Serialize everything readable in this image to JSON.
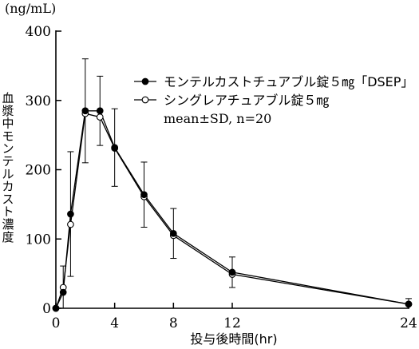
{
  "chart_data": {
    "type": "line",
    "y_unit": "(ng/mL)",
    "ylabel": "血漿中モンテルカスト濃度",
    "xlabel": "投与後時間(hr)",
    "xlim": [
      0,
      24
    ],
    "ylim": [
      0,
      400
    ],
    "x_ticks": [
      0,
      4,
      8,
      12,
      24
    ],
    "y_ticks": [
      0,
      100,
      200,
      300,
      400
    ],
    "legend_position": "top-right",
    "legend_note": "mean±SD, n=20",
    "series": [
      {
        "name": "モンテルカストチュアブル錠５㎎「DSEP」",
        "marker": "filled-circle",
        "color": "#000000",
        "x": [
          0,
          0.5,
          1,
          2,
          3,
          4,
          6,
          8,
          12,
          24
        ],
        "y": [
          0,
          23,
          136,
          285,
          285,
          232,
          164,
          108,
          52,
          6
        ],
        "sd": [
          0,
          0,
          90,
          75,
          50,
          56,
          47,
          36,
          22,
          8
        ]
      },
      {
        "name": "シングレアチュアブル錠５㎎",
        "marker": "open-circle",
        "color": "#000000",
        "x": [
          0,
          0.5,
          1,
          2,
          3,
          4,
          6,
          8,
          12,
          24
        ],
        "y": [
          0,
          30,
          121,
          281,
          276,
          231,
          161,
          105,
          49,
          6
        ],
        "sd": [
          0,
          31,
          0,
          0,
          0,
          0,
          0,
          0,
          0,
          0
        ]
      }
    ]
  }
}
